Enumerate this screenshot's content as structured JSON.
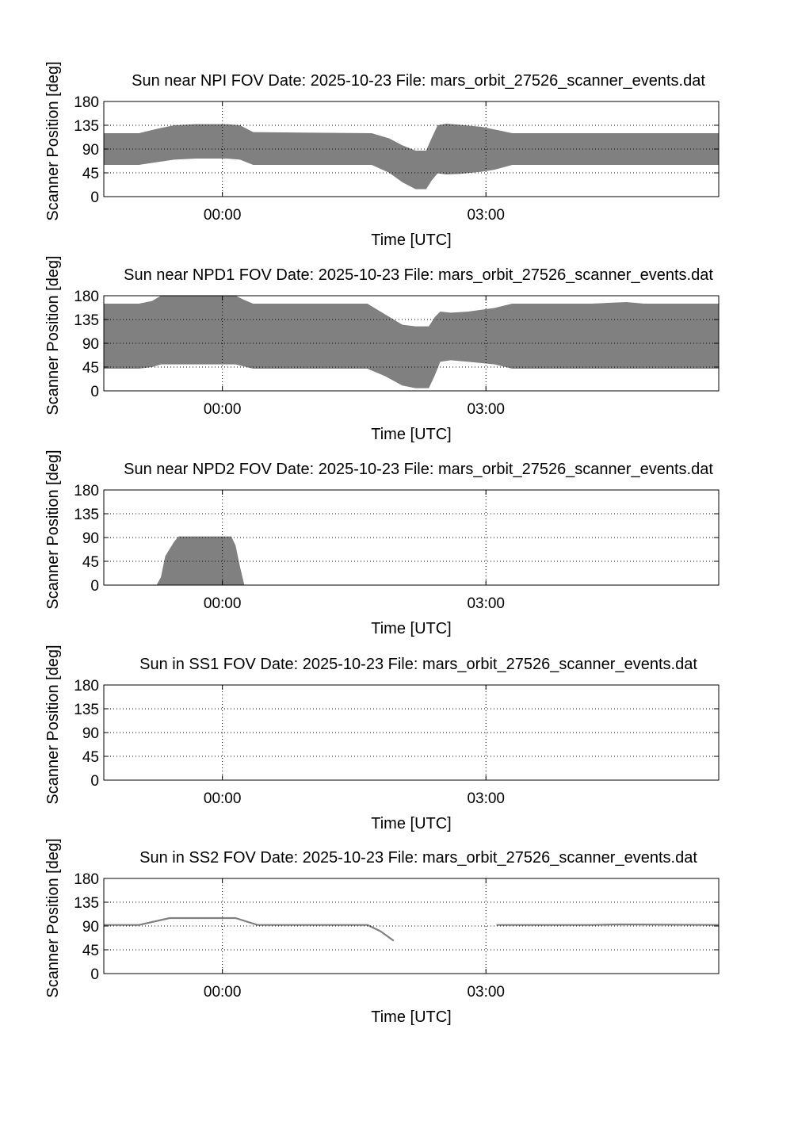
{
  "chart_data": [
    {
      "type": "area",
      "title": "Sun near NPI FOV   Date: 2025-10-23   File: mars_orbit_27526_scanner_events.dat",
      "xlabel": "Time [UTC]",
      "ylabel": "Scanner Position [deg]",
      "xlim": [
        -1.35,
        5.65
      ],
      "ylim": [
        0,
        180
      ],
      "xticks": [
        0,
        3
      ],
      "xtick_labels": [
        "00:00",
        "03:00"
      ],
      "yticks": [
        0,
        45,
        90,
        135,
        180
      ],
      "ytick_labels": [
        "0",
        "45",
        "90",
        "135",
        "180"
      ],
      "grid": true,
      "fill_color": "#808080",
      "band": {
        "x": [
          -1.35,
          -0.95,
          -0.75,
          -0.55,
          -0.3,
          0.05,
          0.2,
          0.35,
          1.7,
          1.9,
          2.05,
          2.2,
          2.32,
          2.38,
          2.45,
          2.55,
          2.7,
          2.95,
          3.1,
          3.3,
          5.65
        ],
        "upper": [
          120,
          120,
          128,
          135,
          137,
          137,
          135,
          122,
          120,
          110,
          97,
          87,
          87,
          110,
          135,
          138,
          136,
          132,
          127,
          120,
          120
        ],
        "lower": [
          60,
          60,
          65,
          70,
          72,
          72,
          70,
          60,
          60,
          45,
          27,
          14,
          14,
          30,
          44,
          42,
          43,
          47,
          51,
          60,
          60
        ]
      }
    },
    {
      "type": "area",
      "title": "Sun near NPD1 FOV   Date: 2025-10-23   File: mars_orbit_27526_scanner_events.dat",
      "xlabel": "Time [UTC]",
      "ylabel": "Scanner Position [deg]",
      "xlim": [
        -1.35,
        5.65
      ],
      "ylim": [
        0,
        180
      ],
      "xticks": [
        0,
        3
      ],
      "xtick_labels": [
        "00:00",
        "03:00"
      ],
      "yticks": [
        0,
        45,
        90,
        135,
        180
      ],
      "ytick_labels": [
        "0",
        "45",
        "90",
        "135",
        "180"
      ],
      "grid": true,
      "fill_color": "#808080",
      "band": {
        "x": [
          -1.35,
          -0.95,
          -0.8,
          -0.7,
          0.15,
          0.25,
          0.35,
          1.65,
          1.85,
          2.05,
          2.2,
          2.35,
          2.42,
          2.48,
          2.6,
          2.8,
          3.1,
          3.3,
          4.2,
          4.6,
          4.8,
          5.65
        ],
        "upper": [
          165,
          165,
          170,
          180,
          180,
          172,
          165,
          165,
          145,
          125,
          122,
          122,
          140,
          150,
          148,
          150,
          157,
          165,
          165,
          168,
          165,
          165
        ],
        "lower": [
          42,
          42,
          45,
          50,
          50,
          46,
          42,
          42,
          28,
          10,
          5,
          5,
          30,
          55,
          58,
          55,
          50,
          42,
          42,
          42,
          42,
          42
        ]
      }
    },
    {
      "type": "area",
      "title": "Sun near NPD2 FOV   Date: 2025-10-23   File: mars_orbit_27526_scanner_events.dat",
      "xlabel": "Time [UTC]",
      "ylabel": "Scanner Position [deg]",
      "xlim": [
        -1.35,
        5.65
      ],
      "ylim": [
        0,
        180
      ],
      "xticks": [
        0,
        3
      ],
      "xtick_labels": [
        "00:00",
        "03:00"
      ],
      "yticks": [
        0,
        45,
        90,
        135,
        180
      ],
      "ytick_labels": [
        "0",
        "45",
        "90",
        "135",
        "180"
      ],
      "grid": true,
      "fill_color": "#808080",
      "band": {
        "x": [
          -0.75,
          -0.7,
          -0.65,
          -0.55,
          -0.5,
          0.1,
          0.15,
          0.2,
          0.25
        ],
        "upper": [
          0,
          15,
          55,
          82,
          92,
          92,
          75,
          35,
          0
        ],
        "lower": [
          0,
          0,
          0,
          0,
          0,
          0,
          0,
          0,
          0
        ]
      }
    },
    {
      "type": "area",
      "title": "Sun in SS1 FOV   Date: 2025-10-23   File: mars_orbit_27526_scanner_events.dat",
      "xlabel": "Time [UTC]",
      "ylabel": "Scanner Position [deg]",
      "xlim": [
        -1.35,
        5.65
      ],
      "ylim": [
        0,
        180
      ],
      "xticks": [
        0,
        3
      ],
      "xtick_labels": [
        "00:00",
        "03:00"
      ],
      "yticks": [
        0,
        45,
        90,
        135,
        180
      ],
      "ytick_labels": [
        "0",
        "45",
        "90",
        "135",
        "180"
      ],
      "grid": true,
      "fill_color": "#808080",
      "band": null
    },
    {
      "type": "line",
      "title": "Sun in SS2 FOV   Date: 2025-10-23   File: mars_orbit_27526_scanner_events.dat",
      "xlabel": "Time [UTC]",
      "ylabel": "Scanner Position [deg]",
      "xlim": [
        -1.35,
        5.65
      ],
      "ylim": [
        0,
        180
      ],
      "xticks": [
        0,
        3
      ],
      "xtick_labels": [
        "00:00",
        "03:00"
      ],
      "yticks": [
        0,
        45,
        90,
        135,
        180
      ],
      "ytick_labels": [
        "0",
        "45",
        "90",
        "135",
        "180"
      ],
      "grid": true,
      "line_color": "#808080",
      "segments": [
        {
          "x": [
            -1.35,
            -0.95,
            -0.6,
            0.15,
            0.4,
            1.65,
            1.8,
            1.95
          ],
          "y": [
            92,
            92,
            105,
            105,
            92,
            92,
            80,
            62
          ]
        },
        {
          "x": [
            3.12,
            4.2,
            4.5,
            5.65
          ],
          "y": [
            92,
            92,
            93,
            92
          ]
        }
      ]
    }
  ]
}
